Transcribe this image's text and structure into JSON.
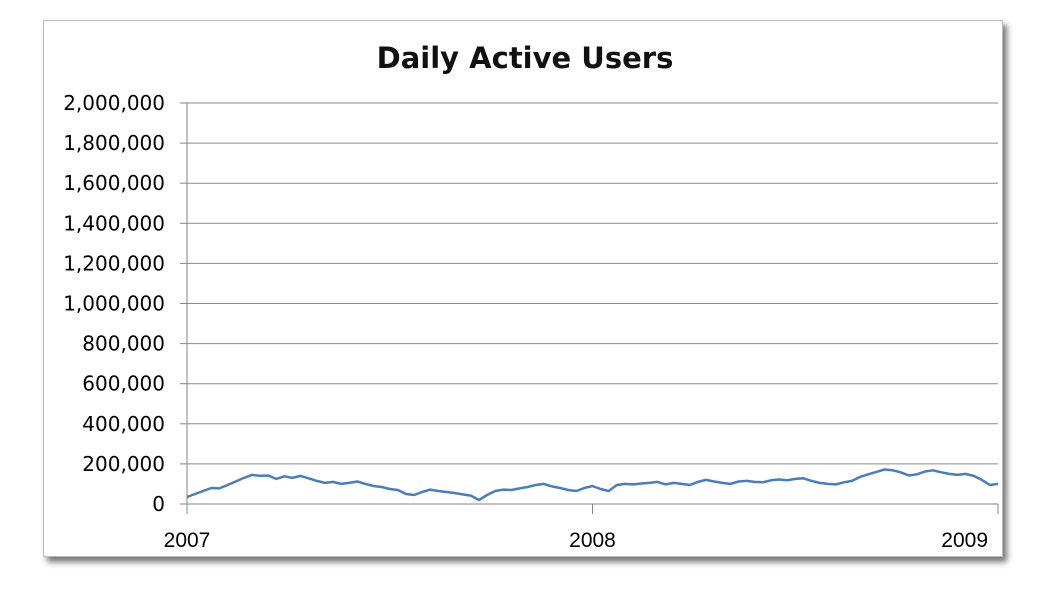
{
  "chart_data": {
    "type": "line",
    "title": "Daily Active Users",
    "xlabel": "",
    "ylabel": "",
    "ylim": [
      0,
      2000000
    ],
    "yticks": [
      0,
      200000,
      400000,
      600000,
      800000,
      1000000,
      1200000,
      1400000,
      1600000,
      1800000,
      2000000
    ],
    "ytick_labels": [
      "0",
      "200,000",
      "400,000",
      "600,000",
      "800,000",
      "1,000,000",
      "1,200,000",
      "1,400,000",
      "1,600,000",
      "1,800,000",
      "2,000,000"
    ],
    "xlim": [
      2007,
      2009
    ],
    "xticks": [
      2007,
      2008,
      2009
    ],
    "xtick_labels": [
      "2007",
      "2008",
      "2009"
    ],
    "grid": true,
    "legend": "none",
    "series": [
      {
        "color": "#4a7ebb",
        "x": [
          2007.0,
          2007.02,
          2007.04,
          2007.06,
          2007.08,
          2007.1,
          2007.12,
          2007.14,
          2007.16,
          2007.18,
          2007.2,
          2007.22,
          2007.24,
          2007.26,
          2007.28,
          2007.3,
          2007.32,
          2007.34,
          2007.36,
          2007.38,
          2007.4,
          2007.42,
          2007.44,
          2007.46,
          2007.48,
          2007.5,
          2007.52,
          2007.54,
          2007.56,
          2007.58,
          2007.6,
          2007.62,
          2007.64,
          2007.66,
          2007.68,
          2007.7,
          2007.72,
          2007.74,
          2007.76,
          2007.78,
          2007.8,
          2007.82,
          2007.84,
          2007.86,
          2007.88,
          2007.9,
          2007.92,
          2007.94,
          2007.96,
          2007.98,
          2008.0,
          2008.02,
          2008.04,
          2008.06,
          2008.08,
          2008.1,
          2008.12,
          2008.14,
          2008.16,
          2008.18,
          2008.2,
          2008.22,
          2008.24,
          2008.26,
          2008.28,
          2008.3,
          2008.32,
          2008.34,
          2008.36,
          2008.38,
          2008.4,
          2008.42,
          2008.44,
          2008.46,
          2008.48,
          2008.5,
          2008.52,
          2008.54,
          2008.56,
          2008.58,
          2008.6,
          2008.62,
          2008.64,
          2008.66,
          2008.68,
          2008.7,
          2008.72,
          2008.74,
          2008.76,
          2008.78,
          2008.8,
          2008.82,
          2008.84,
          2008.86,
          2008.88,
          2008.9,
          2008.92,
          2008.94,
          2008.96,
          2008.98,
          2009.0
        ],
        "values": [
          35000,
          50000,
          65000,
          80000,
          78000,
          95000,
          112000,
          130000,
          145000,
          140000,
          142000,
          125000,
          138000,
          130000,
          140000,
          128000,
          115000,
          105000,
          110000,
          100000,
          105000,
          112000,
          100000,
          90000,
          85000,
          75000,
          70000,
          50000,
          45000,
          60000,
          72000,
          65000,
          60000,
          55000,
          48000,
          42000,
          20000,
          45000,
          65000,
          72000,
          70000,
          78000,
          85000,
          95000,
          100000,
          88000,
          80000,
          70000,
          65000,
          80000,
          90000,
          75000,
          65000,
          95000,
          100000,
          98000,
          102000,
          105000,
          110000,
          98000,
          105000,
          100000,
          95000,
          110000,
          120000,
          112000,
          105000,
          100000,
          112000,
          115000,
          110000,
          108000,
          118000,
          122000,
          118000,
          125000,
          128000,
          115000,
          105000,
          100000,
          98000,
          108000,
          115000,
          135000,
          148000,
          160000,
          172000,
          168000,
          158000,
          142000,
          148000,
          162000,
          168000,
          158000,
          150000,
          145000,
          150000,
          140000,
          120000,
          95000,
          100000
        ]
      }
    ]
  }
}
